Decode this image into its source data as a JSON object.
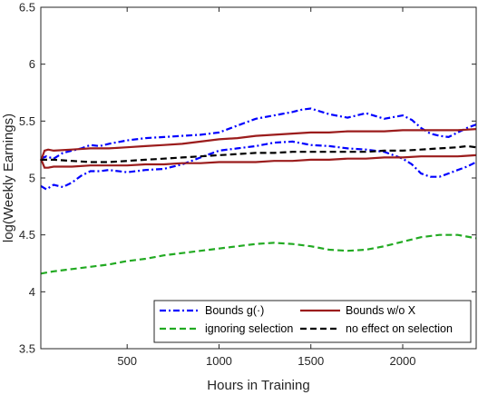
{
  "chart_data": {
    "type": "line",
    "title": "",
    "xlabel": "Hours in Training",
    "ylabel": "log(Weekly Earnings)",
    "xlim": [
      30,
      2400
    ],
    "ylim": [
      3.5,
      6.5
    ],
    "xticks": [
      500,
      1000,
      1500,
      2000
    ],
    "xtick_labels": [
      "500",
      "1000",
      "1500",
      "2000"
    ],
    "yticks": [
      3.5,
      4,
      4.5,
      5,
      5.5,
      6,
      6.5
    ],
    "ytick_labels": [
      "3.5",
      "4",
      "4.5",
      "5",
      "5.5",
      "6",
      "6.5"
    ],
    "grid": false,
    "legend_position": "bottom-right",
    "series": [
      {
        "name": "Bounds g(·)",
        "color": "#0000ff",
        "style": "dashdot",
        "lines": [
          {
            "x": [
              30,
              60,
              100,
              150,
              200,
              250,
              300,
              350,
              400,
              500,
              600,
              700,
              800,
              900,
              1000,
              1100,
              1200,
              1300,
              1400,
              1450,
              1500,
              1600,
              1700,
              1800,
              1900,
              2000,
              2050,
              2100,
              2150,
              2200,
              2250,
              2300,
              2350,
              2400
            ],
            "y": [
              5.17,
              5.19,
              5.17,
              5.22,
              5.24,
              5.26,
              5.29,
              5.28,
              5.3,
              5.33,
              5.35,
              5.36,
              5.37,
              5.38,
              5.4,
              5.46,
              5.52,
              5.55,
              5.58,
              5.6,
              5.61,
              5.56,
              5.53,
              5.57,
              5.52,
              5.55,
              5.51,
              5.44,
              5.39,
              5.37,
              5.36,
              5.4,
              5.44,
              5.47
            ]
          },
          {
            "x": [
              30,
              60,
              100,
              150,
              200,
              250,
              300,
              350,
              400,
              500,
              600,
              700,
              800,
              900,
              1000,
              1100,
              1200,
              1300,
              1400,
              1500,
              1600,
              1700,
              1800,
              1900,
              2000,
              2050,
              2100,
              2150,
              2200,
              2250,
              2300,
              2350,
              2400
            ],
            "y": [
              4.93,
              4.9,
              4.94,
              4.92,
              4.96,
              5.02,
              5.06,
              5.06,
              5.07,
              5.05,
              5.07,
              5.08,
              5.12,
              5.18,
              5.24,
              5.26,
              5.28,
              5.31,
              5.32,
              5.29,
              5.28,
              5.26,
              5.25,
              5.23,
              5.17,
              5.12,
              5.04,
              5.01,
              5.01,
              5.04,
              5.07,
              5.1,
              5.14
            ]
          }
        ]
      },
      {
        "name": "Bounds w/o X",
        "color": "#9b1c1c",
        "style": "solid",
        "lines": [
          {
            "x": [
              30,
              50,
              70,
              100,
              200,
              300,
              400,
              500,
              600,
              700,
              800,
              900,
              1000,
              1100,
              1200,
              1300,
              1400,
              1500,
              1600,
              1700,
              1800,
              1900,
              2000,
              2100,
              2200,
              2300,
              2400
            ],
            "y": [
              5.15,
              5.24,
              5.25,
              5.24,
              5.25,
              5.26,
              5.26,
              5.27,
              5.28,
              5.29,
              5.3,
              5.32,
              5.34,
              5.35,
              5.37,
              5.38,
              5.39,
              5.4,
              5.4,
              5.41,
              5.41,
              5.41,
              5.42,
              5.42,
              5.42,
              5.42,
              5.43
            ]
          },
          {
            "x": [
              30,
              50,
              70,
              100,
              200,
              300,
              400,
              500,
              600,
              700,
              800,
              900,
              1000,
              1100,
              1200,
              1300,
              1400,
              1500,
              1600,
              1700,
              1800,
              1900,
              2000,
              2100,
              2200,
              2300,
              2400
            ],
            "y": [
              5.17,
              5.09,
              5.09,
              5.1,
              5.1,
              5.11,
              5.11,
              5.11,
              5.12,
              5.12,
              5.13,
              5.13,
              5.14,
              5.14,
              5.14,
              5.15,
              5.15,
              5.16,
              5.16,
              5.17,
              5.17,
              5.18,
              5.18,
              5.19,
              5.19,
              5.19,
              5.2
            ]
          }
        ]
      },
      {
        "name": "ignoring selection",
        "color": "#22aa22",
        "style": "dashed",
        "lines": [
          {
            "x": [
              30,
              100,
              200,
              300,
              400,
              500,
              600,
              700,
              800,
              900,
              1000,
              1100,
              1200,
              1300,
              1400,
              1500,
              1600,
              1700,
              1800,
              1900,
              2000,
              2100,
              2200,
              2300,
              2400
            ],
            "y": [
              4.16,
              4.18,
              4.2,
              4.22,
              4.24,
              4.27,
              4.29,
              4.32,
              4.34,
              4.36,
              4.38,
              4.4,
              4.42,
              4.43,
              4.42,
              4.4,
              4.37,
              4.36,
              4.37,
              4.4,
              4.44,
              4.48,
              4.5,
              4.5,
              4.47
            ]
          }
        ]
      },
      {
        "name": "no effect on selection",
        "color": "#000000",
        "style": "dashed",
        "lines": [
          {
            "x": [
              30,
              100,
              200,
              300,
              400,
              500,
              600,
              700,
              800,
              900,
              1000,
              1100,
              1200,
              1300,
              1400,
              1500,
              1600,
              1700,
              1800,
              1900,
              2000,
              2100,
              2200,
              2300,
              2350,
              2400
            ],
            "y": [
              5.16,
              5.16,
              5.15,
              5.14,
              5.14,
              5.15,
              5.16,
              5.17,
              5.18,
              5.19,
              5.2,
              5.21,
              5.22,
              5.22,
              5.23,
              5.23,
              5.23,
              5.23,
              5.23,
              5.24,
              5.24,
              5.25,
              5.26,
              5.27,
              5.28,
              5.27
            ]
          }
        ]
      }
    ]
  }
}
